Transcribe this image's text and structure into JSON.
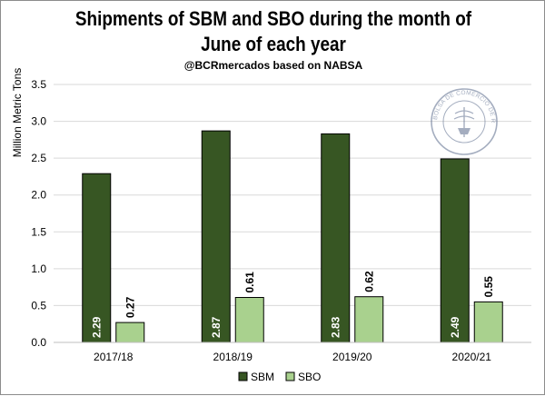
{
  "chart_data": {
    "type": "bar",
    "title_line1": "Shipments of SBM and SBO during the month of",
    "title_line2": "June of each year",
    "subtitle": "@BCRmercados based on NABSA",
    "ylabel": "Million Metric Tons",
    "xlabel": "",
    "ylim": [
      0,
      3.5
    ],
    "yticks": [
      "0.0",
      "0.5",
      "1.0",
      "1.5",
      "2.0",
      "2.5",
      "3.0",
      "3.5"
    ],
    "categories": [
      "2017/18",
      "2018/19",
      "2019/20",
      "2020/21"
    ],
    "series": [
      {
        "name": "SBM",
        "values": [
          2.29,
          2.87,
          2.83,
          2.49
        ],
        "labels": [
          "2.29",
          "2.87",
          "2.83",
          "2.49"
        ],
        "color": "#375623"
      },
      {
        "name": "SBO",
        "values": [
          0.27,
          0.61,
          0.62,
          0.55
        ],
        "labels": [
          "0.27",
          "0.61",
          "0.62",
          "0.55"
        ],
        "color": "#A9D18E"
      }
    ],
    "grid": true,
    "legend_position": "bottom-center"
  },
  "logo": {
    "name": "bolsa-de-comercio-de-rosario-seal",
    "text": "BOLSA DE COMERCIO DE ROSARIO"
  }
}
